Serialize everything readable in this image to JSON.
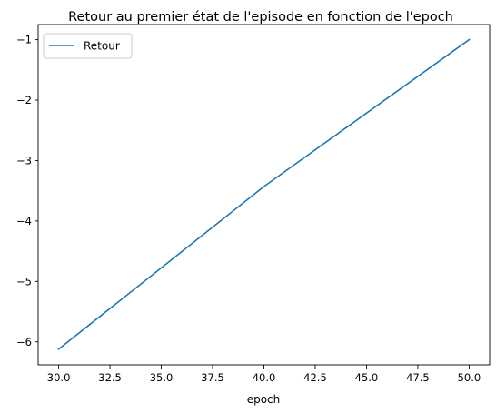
{
  "chart_data": {
    "type": "line",
    "title": "Retour au premier état de l'episode en fonction de l'epoch",
    "xlabel": "epoch",
    "ylabel": "",
    "xlim": [
      29.0,
      51.0
    ],
    "ylim": [
      -6.38,
      -0.75
    ],
    "xticks": [
      30.0,
      32.5,
      35.0,
      37.5,
      40.0,
      42.5,
      45.0,
      47.5,
      50.0
    ],
    "xtick_labels": [
      "30.0",
      "32.5",
      "35.0",
      "37.5",
      "40.0",
      "42.5",
      "45.0",
      "47.5",
      "50.0"
    ],
    "yticks": [
      -6,
      -5,
      -4,
      -3,
      -2,
      -1
    ],
    "ytick_labels": [
      "−6",
      "−5",
      "−4",
      "−3",
      "−2",
      "−1"
    ],
    "grid": false,
    "legend": {
      "placement": "upper-left",
      "entries": [
        "Retour"
      ]
    },
    "series": [
      {
        "name": "Retour",
        "color": "#1f77b4",
        "x": [
          30,
          40,
          50
        ],
        "y": [
          -6.12,
          -3.43,
          -1.0
        ]
      }
    ]
  }
}
